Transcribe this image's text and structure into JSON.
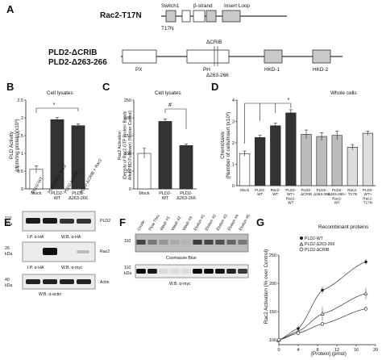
{
  "panel_letters": {
    "A": "A",
    "B": "B",
    "C": "C",
    "D": "D",
    "E": "E",
    "F": "F",
    "G": "G"
  },
  "panelA": {
    "construct1": "Rac2-T17N",
    "switch1": "Switch1",
    "bstrand": "β-strand",
    "insert_loop": "Insert Loop",
    "mutation": "T17N",
    "construct2_line1": "PLD2-ΔCRIB",
    "construct2_line2": "PLD2-Δ263-266",
    "dcrib": "ΔCRIB",
    "px": "PX",
    "ph": "PH",
    "d263": "Δ263-266",
    "hkd1": "HKD-1",
    "hkd2": "HKD-2"
  },
  "panelB": {
    "subtitle": "Cell lysates",
    "ylabel_line1": "PLD Activity",
    "ylabel_line2": "(dpm/mg protein)(x10³)",
    "sig": "*"
  },
  "panelC": {
    "subtitle": "Cell lysates",
    "ylabel_line1": "Rac2 Activation",
    "ylabel_line2": "(Density of Rac2-GTP Protein Bands",
    "ylabel_line3": "After PBD Pulldown) (% over Control)",
    "sig": "#"
  },
  "panelD": {
    "subtitle": "Whole cells",
    "ylabel_line1": "Chemotaxis",
    "ylabel_line2": "(Number of cells/insert (x10³)",
    "sig": "*"
  },
  "panelE": {
    "lanes": [
      "PLD2-WT",
      "PLD2-WT + Rac2",
      "PLD2-ΔCRIB",
      "PLD2-ΔCRIB + Rac2"
    ],
    "mw1": "110",
    "mw2": "26",
    "mw3": "40",
    "kda": "kDa",
    "ip1": "I.P. α-HA",
    "wb1": "W.B. α-HA",
    "ip2": "I.P. α-HA",
    "wb2": "W.B. α-myc",
    "wb3": "W.B. α-actin",
    "right1": "PLD2",
    "right2": "Rac2",
    "right3": "Actin"
  },
  "panelF": {
    "lanes": [
      "Crude",
      "Flow Thru",
      "Wash #1",
      "Wash #2",
      "Wash #3",
      "Elution #1",
      "Elution #2",
      "Elution #3",
      "Elution #4",
      "Elution #5"
    ],
    "mw1": "110",
    "mw2": "110",
    "kda": "kDa",
    "stain": "Coomassie Blue",
    "wb": "W.B. α-myc"
  },
  "panelG": {
    "subtitle": "Recombinant proteins",
    "legend": [
      "PLD2-WT",
      "PLD2-Δ263-266",
      "PLD2-ΔCRIB"
    ],
    "ylabel": "Rac2 Activation (% over Control)",
    "xlabel": "[Protein] (pmol)"
  },
  "chart_data": [
    {
      "panel": "B",
      "type": "bar",
      "categories": [
        "Mock",
        "PLD2-WT",
        "PLD2-Δ263-266"
      ],
      "category_lines": [
        [
          "Mock"
        ],
        [
          "PLD2-",
          "WT"
        ],
        [
          "PLD2-",
          "Δ263-266"
        ]
      ],
      "values": [
        0.55,
        1.95,
        1.78
      ],
      "errors": [
        0.1,
        0.06,
        0.05
      ],
      "colors": [
        "#ffffff",
        "#333333",
        "#333333"
      ],
      "ylim": [
        0,
        2.5
      ],
      "yticks": [
        0,
        0.5,
        1,
        1.5,
        2,
        2.5
      ],
      "ytick_labels": [
        "0",
        "0.5",
        "1",
        "1.5",
        "2",
        "2.5"
      ]
    },
    {
      "panel": "C",
      "type": "bar",
      "categories": [
        "Mock",
        "PLD2-WT",
        "PLD2-Δ263-266"
      ],
      "category_lines": [
        [
          "Mock"
        ],
        [
          "PLD2-",
          "WT"
        ],
        [
          "PLD2-",
          "Δ263-266"
        ]
      ],
      "values": [
        100,
        190,
        122
      ],
      "errors": [
        14,
        7,
        4
      ],
      "colors": [
        "#ffffff",
        "#333333",
        "#333333"
      ],
      "ylim": [
        0,
        250
      ],
      "yticks": [
        0,
        50,
        100,
        150,
        200,
        250
      ],
      "ytick_labels": [
        "0",
        "50",
        "100",
        "150",
        "200",
        "250"
      ]
    },
    {
      "panel": "D",
      "type": "bar",
      "categories": [
        "Mock",
        "PLD2-WT",
        "Rac2-WT",
        "PLD2-WT+Rac2-WT",
        "PLD2-ΔCRIB",
        "PLD2-Δ263-266",
        "PLD2-Δ263-266+Rac2-WT",
        "Rac2-T17N",
        "PLD2-WT+Rac2-T17N"
      ],
      "category_lines": [
        [
          "Mock"
        ],
        [
          "PLD2-",
          "WT"
        ],
        [
          "Rac2-",
          "WT"
        ],
        [
          "PLD2-",
          "WT+",
          "Rac2-",
          "WT"
        ],
        [
          "PLD2-",
          "ΔCRIB"
        ],
        [
          "PLD2-",
          "Δ263-266"
        ],
        [
          "PLD2-",
          "Δ263-266+",
          "Rac2-",
          "WT"
        ],
        [
          "Rac2-",
          "T17N"
        ],
        [
          "PLD2-",
          "WT+",
          "Rac2-",
          "T17N"
        ]
      ],
      "values": [
        1.5,
        2.25,
        2.8,
        3.4,
        2.4,
        2.3,
        2.35,
        1.8,
        2.45
      ],
      "errors": [
        0.12,
        0.1,
        0.12,
        0.15,
        0.2,
        0.18,
        0.2,
        0.12,
        0.1
      ],
      "colors": [
        "#ffffff",
        "#333333",
        "#333333",
        "#333333",
        "#bbbbbb",
        "#bbbbbb",
        "#bbbbbb",
        "#dddddd",
        "#dddddd"
      ],
      "ylim": [
        0,
        4
      ],
      "yticks": [
        0,
        1,
        2,
        3,
        4
      ],
      "ytick_labels": [
        "0",
        "1",
        "2",
        "3",
        "4"
      ]
    },
    {
      "panel": "G",
      "type": "line",
      "xlim": [
        0,
        20
      ],
      "ylim": [
        100,
        250
      ],
      "xticks": [
        0,
        4,
        8,
        12,
        16,
        20
      ],
      "xtick_labels": [
        "0",
        "4",
        "8",
        "12",
        "16",
        "20"
      ],
      "yticks": [
        100,
        150,
        200,
        250
      ],
      "ytick_labels": [
        "100",
        "150",
        "200",
        "250"
      ],
      "series": [
        {
          "name": "PLD2-WT",
          "x": [
            0,
            4,
            9,
            18
          ],
          "y": [
            100,
            120,
            188,
            238
          ],
          "err": [
            3,
            4,
            6,
            5
          ],
          "marker": "filled-circle"
        },
        {
          "name": "PLD2-Δ263-266",
          "x": [
            0,
            4,
            9,
            18
          ],
          "y": [
            100,
            115,
            146,
            182
          ],
          "err": [
            3,
            4,
            12,
            10
          ],
          "marker": "open-triangle"
        },
        {
          "name": "PLD2-ΔCRIB",
          "x": [
            0,
            4,
            9,
            18
          ],
          "y": [
            100,
            112,
            128,
            155
          ],
          "err": [
            3,
            3,
            4,
            4
          ],
          "marker": "open-circle"
        }
      ]
    }
  ]
}
